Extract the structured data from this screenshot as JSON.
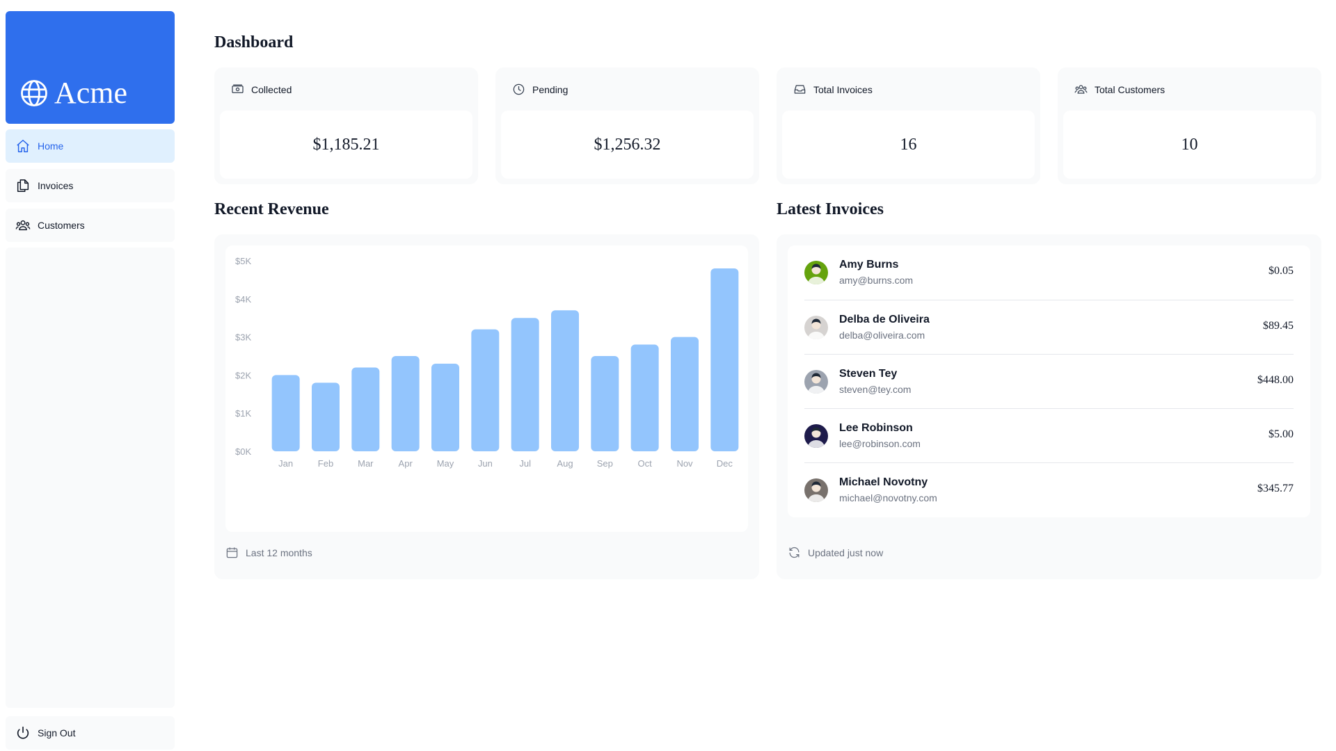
{
  "app": {
    "logo_text": "Acme"
  },
  "sidebar": {
    "items": [
      {
        "label": "Home",
        "icon": "home-icon"
      },
      {
        "label": "Invoices",
        "icon": "document-duplicate-icon"
      },
      {
        "label": "Customers",
        "icon": "user-group-icon"
      }
    ],
    "signout_label": "Sign Out"
  },
  "header": {
    "title": "Dashboard"
  },
  "cards": [
    {
      "title": "Collected",
      "value": "$1,185.21",
      "icon": "banknotes-icon"
    },
    {
      "title": "Pending",
      "value": "$1,256.32",
      "icon": "clock-icon"
    },
    {
      "title": "Total Invoices",
      "value": "16",
      "icon": "inbox-icon"
    },
    {
      "title": "Total Customers",
      "value": "10",
      "icon": "user-group-icon"
    }
  ],
  "revenue": {
    "title": "Recent Revenue",
    "footer": "Last 12 months"
  },
  "chart_data": {
    "type": "bar",
    "categories": [
      "Jan",
      "Feb",
      "Mar",
      "Apr",
      "May",
      "Jun",
      "Jul",
      "Aug",
      "Sep",
      "Oct",
      "Nov",
      "Dec"
    ],
    "values": [
      2000,
      1800,
      2200,
      2500,
      2300,
      3200,
      3500,
      3700,
      2500,
      2800,
      3000,
      4800
    ],
    "y_ticks": [
      "$5K",
      "$4K",
      "$3K",
      "$2K",
      "$1K",
      "$0K"
    ],
    "ylim": [
      0,
      5000
    ],
    "bar_color": "#93c5fd",
    "grid": false
  },
  "latest": {
    "title": "Latest Invoices",
    "footer": "Updated just now",
    "rows": [
      {
        "name": "Amy Burns",
        "email": "amy@burns.com",
        "amount": "$0.05",
        "avatar_color": "#65a30d"
      },
      {
        "name": "Delba de Oliveira",
        "email": "delba@oliveira.com",
        "amount": "$89.45",
        "avatar_color": "#d6d3d1"
      },
      {
        "name": "Steven Tey",
        "email": "steven@tey.com",
        "amount": "$448.00",
        "avatar_color": "#9ca3af"
      },
      {
        "name": "Lee Robinson",
        "email": "lee@robinson.com",
        "amount": "$5.00",
        "avatar_color": "#1e1b4b"
      },
      {
        "name": "Michael Novotny",
        "email": "michael@novotny.com",
        "amount": "$345.77",
        "avatar_color": "#78716c"
      }
    ]
  }
}
